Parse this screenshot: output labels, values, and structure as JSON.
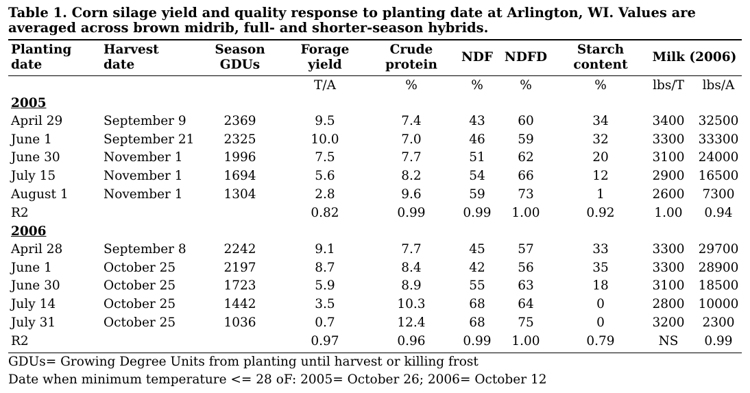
{
  "title": "Table 1. Corn silage yield and quality response to planting date at Arlington, WI. Values are averaged across brown midrib, full- and shorter-season hybrids.",
  "headers": {
    "planting": [
      "Planting",
      "date"
    ],
    "harvest": [
      "Harvest",
      "date"
    ],
    "gdus": [
      "Season",
      "GDUs"
    ],
    "forage": [
      "Forage",
      "yield"
    ],
    "protein": [
      "Crude",
      "protein"
    ],
    "ndf": "NDF",
    "ndfd": "NDFD",
    "starch": [
      "Starch",
      "content"
    ],
    "milk": "Milk (2006)"
  },
  "units": {
    "forage": "T/A",
    "protein": "%",
    "ndf": "%",
    "ndfd": "%",
    "starch": "%",
    "milk_t": "lbs/T",
    "milk_a": "lbs/A"
  },
  "years": [
    {
      "label": "2005",
      "rows": [
        [
          "April 29",
          "September 9",
          "2369",
          "9.5",
          "7.4",
          "43",
          "60",
          "34",
          "3400",
          "32500"
        ],
        [
          "June 1",
          "September 21",
          "2325",
          "10.0",
          "7.0",
          "46",
          "59",
          "32",
          "3300",
          "33300"
        ],
        [
          "June 30",
          "November 1",
          "1996",
          "7.5",
          "7.7",
          "51",
          "62",
          "20",
          "3100",
          "24000"
        ],
        [
          "July 15",
          "November 1",
          "1694",
          "5.6",
          "8.2",
          "54",
          "66",
          "12",
          "2900",
          "16500"
        ],
        [
          "August 1",
          "November 1",
          "1304",
          "2.8",
          "9.6",
          "59",
          "73",
          "1",
          "2600",
          "7300"
        ],
        [
          "R2",
          "",
          "",
          "0.82",
          "0.99",
          "0.99",
          "1.00",
          "0.92",
          "1.00",
          "0.94"
        ]
      ]
    },
    {
      "label": "2006",
      "rows": [
        [
          "April 28",
          "September 8",
          "2242",
          "9.1",
          "7.7",
          "45",
          "57",
          "33",
          "3300",
          "29700"
        ],
        [
          "June 1",
          "October 25",
          "2197",
          "8.7",
          "8.4",
          "42",
          "56",
          "35",
          "3300",
          "28900"
        ],
        [
          "June 30",
          "October 25",
          "1723",
          "5.9",
          "8.9",
          "55",
          "63",
          "18",
          "3100",
          "18500"
        ],
        [
          "July 14",
          "October 25",
          "1442",
          "3.5",
          "10.3",
          "68",
          "64",
          "0",
          "2800",
          "10000"
        ],
        [
          "July 31",
          "October 25",
          "1036",
          "0.7",
          "12.4",
          "68",
          "75",
          "0",
          "3200",
          "2300"
        ],
        [
          "R2",
          "",
          "",
          "0.97",
          "0.96",
          "0.99",
          "1.00",
          "0.79",
          "NS",
          "0.99"
        ]
      ]
    }
  ],
  "footnotes": [
    "GDUs= Growing Degree Units from planting until harvest or killing frost",
    "Date when minimum temperature <= 28 oF: 2005= October 26; 2006= October 12"
  ]
}
